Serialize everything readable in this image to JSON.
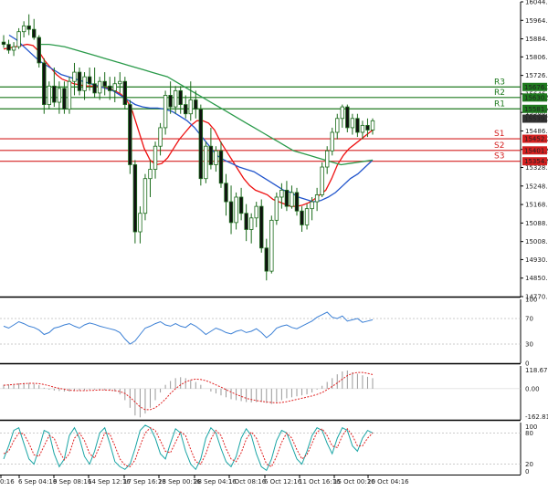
{
  "chart_data": {
    "type": "candlestick",
    "price_axis": {
      "labels": [
        "16044.0",
        "15964.0",
        "15884.0",
        "15806.0",
        "15726.0",
        "15646.0",
        "15566.0",
        "15486.0",
        "15406.0",
        "15328.0",
        "15248.0",
        "15168.0",
        "15088.0",
        "15008.0",
        "14930.0",
        "14850.0",
        "14770.0"
      ],
      "ylim": [
        14770,
        16044
      ]
    },
    "price_tags": [
      {
        "label": "15676.1",
        "price": 15676.1,
        "color": "#1f7a1f"
      },
      {
        "label": "15630.5",
        "price": 15630.5,
        "color": "#1f7a1f"
      },
      {
        "label": "15581.4",
        "price": 15581.4,
        "color": "#1f7a1f"
      },
      {
        "label": "15539.1",
        "price": 15539.1,
        "color": "#333333"
      },
      {
        "label": "15452.2",
        "price": 15452.2,
        "color": "#d42020"
      },
      {
        "label": "15401.9",
        "price": 15401.9,
        "color": "#d42020"
      },
      {
        "label": "15354.9",
        "price": 15354.9,
        "color": "#d42020"
      }
    ],
    "levels": [
      {
        "name": "R3",
        "price": 15676.1,
        "color": "#1f7a1f"
      },
      {
        "name": "R2",
        "price": 15630.5,
        "color": "#1f7a1f"
      },
      {
        "name": "R1",
        "price": 15581.4,
        "color": "#1f7a1f"
      },
      {
        "name": "S1",
        "price": 15452.2,
        "color": "#d42020"
      },
      {
        "name": "S2",
        "price": 15401.9,
        "color": "#d42020"
      },
      {
        "name": "S3",
        "price": 15354.9,
        "color": "#d42020"
      }
    ],
    "x_labels": [
      "0:16",
      "6 Sep 04:16",
      "9 Sep 08:16",
      "14 Sep 12:16",
      "17 Sep 16:16",
      "23 Sep 00:16",
      "28 Sep 04:16",
      "1 Oct 08:16",
      "6 Oct 12:16",
      "11 Oct 16:16",
      "15 Oct 00:16",
      "20 Oct 04:16"
    ],
    "candles_ohlc": [
      [
        15870,
        15900,
        15845,
        15860
      ],
      [
        15860,
        15880,
        15820,
        15835
      ],
      [
        15835,
        15870,
        15810,
        15850
      ],
      [
        15850,
        15930,
        15840,
        15915
      ],
      [
        15915,
        15960,
        15890,
        15940
      ],
      [
        15940,
        15990,
        15900,
        15925
      ],
      [
        15925,
        15970,
        15880,
        15890
      ],
      [
        15890,
        15900,
        15760,
        15780
      ],
      [
        15780,
        15800,
        15560,
        15600
      ],
      [
        15600,
        15700,
        15580,
        15680
      ],
      [
        15680,
        15760,
        15590,
        15610
      ],
      [
        15610,
        15700,
        15560,
        15670
      ],
      [
        15670,
        15700,
        15560,
        15580
      ],
      [
        15580,
        15720,
        15560,
        15700
      ],
      [
        15700,
        15780,
        15640,
        15740
      ],
      [
        15740,
        15760,
        15640,
        15660
      ],
      [
        15660,
        15740,
        15620,
        15720
      ],
      [
        15720,
        15760,
        15660,
        15690
      ],
      [
        15690,
        15760,
        15630,
        15650
      ],
      [
        15650,
        15720,
        15620,
        15700
      ],
      [
        15700,
        15740,
        15640,
        15680
      ],
      [
        15680,
        15720,
        15620,
        15660
      ],
      [
        15660,
        15720,
        15610,
        15690
      ],
      [
        15690,
        15740,
        15650,
        15700
      ],
      [
        15700,
        15720,
        15580,
        15600
      ],
      [
        15600,
        15620,
        15300,
        15340
      ],
      [
        15340,
        15360,
        15000,
        15050
      ],
      [
        15050,
        15160,
        15000,
        15130
      ],
      [
        15130,
        15300,
        15100,
        15280
      ],
      [
        15280,
        15360,
        15200,
        15320
      ],
      [
        15320,
        15440,
        15280,
        15420
      ],
      [
        15420,
        15520,
        15380,
        15500
      ],
      [
        15500,
        15660,
        15470,
        15640
      ],
      [
        15640,
        15700,
        15560,
        15590
      ],
      [
        15590,
        15680,
        15560,
        15660
      ],
      [
        15660,
        15680,
        15560,
        15600
      ],
      [
        15600,
        15640,
        15540,
        15560
      ],
      [
        15560,
        15700,
        15530,
        15620
      ],
      [
        15620,
        15660,
        15540,
        15580
      ],
      [
        15580,
        15600,
        15250,
        15280
      ],
      [
        15280,
        15440,
        15260,
        15420
      ],
      [
        15420,
        15500,
        15320,
        15340
      ],
      [
        15340,
        15420,
        15310,
        15400
      ],
      [
        15400,
        15440,
        15240,
        15260
      ],
      [
        15260,
        15300,
        15120,
        15180
      ],
      [
        15180,
        15250,
        15040,
        15090
      ],
      [
        15090,
        15220,
        15060,
        15200
      ],
      [
        15200,
        15240,
        15100,
        15130
      ],
      [
        15130,
        15170,
        15010,
        15060
      ],
      [
        15060,
        15130,
        15000,
        15110
      ],
      [
        15110,
        15180,
        15070,
        15160
      ],
      [
        15160,
        15190,
        14960,
        14980
      ],
      [
        14980,
        15020,
        14840,
        14880
      ],
      [
        14880,
        15120,
        14870,
        15100
      ],
      [
        15100,
        15220,
        15080,
        15200
      ],
      [
        15200,
        15260,
        15150,
        15230
      ],
      [
        15230,
        15270,
        15140,
        15160
      ],
      [
        15160,
        15250,
        15150,
        15220
      ],
      [
        15220,
        15240,
        15120,
        15140
      ],
      [
        15140,
        15160,
        15050,
        15080
      ],
      [
        15080,
        15170,
        15060,
        15150
      ],
      [
        15150,
        15200,
        15100,
        15180
      ],
      [
        15180,
        15240,
        15140,
        15210
      ],
      [
        15210,
        15350,
        15200,
        15330
      ],
      [
        15330,
        15420,
        15300,
        15400
      ],
      [
        15400,
        15500,
        15380,
        15480
      ],
      [
        15480,
        15560,
        15450,
        15540
      ],
      [
        15540,
        15600,
        15500,
        15590
      ],
      [
        15590,
        15600,
        15480,
        15500
      ],
      [
        15500,
        15560,
        15470,
        15540
      ],
      [
        15540,
        15560,
        15460,
        15480
      ],
      [
        15480,
        15530,
        15450,
        15510
      ],
      [
        15510,
        15540,
        15460,
        15490
      ],
      [
        15490,
        15540,
        15470,
        15530
      ]
    ],
    "moving_averages": [
      {
        "color": "#ee1111",
        "values": [
          15840,
          15845,
          15850,
          15855,
          15860,
          15855,
          15830,
          15790,
          15760,
          15730,
          15710,
          15700,
          15690,
          15685,
          15680,
          15680,
          15678,
          15675,
          15670,
          15660,
          15645,
          15620,
          15570,
          15490,
          15410,
          15360,
          15340,
          15345,
          15370,
          15410,
          15450,
          15480,
          15510,
          15530,
          15530,
          15520,
          15490,
          15440,
          15400,
          15360,
          15320,
          15280,
          15250,
          15230,
          15220,
          15210,
          15190,
          15180,
          15170,
          15160,
          15160,
          15165,
          15175,
          15190,
          15210,
          15230,
          15280,
          15340,
          15380,
          15410,
          15430,
          15450,
          15470,
          15490
        ]
      },
      {
        "color": "#2255cc",
        "values": [
          15900,
          15880,
          15850,
          15820,
          15790,
          15770,
          15750,
          15730,
          15720,
          15710,
          15700,
          15690,
          15680,
          15670,
          15660,
          15640,
          15620,
          15600,
          15590,
          15585,
          15585,
          15580,
          15570,
          15550,
          15530,
          15500,
          15460,
          15420,
          15380,
          15360,
          15345,
          15330,
          15320,
          15310,
          15290,
          15270,
          15250,
          15230,
          15220,
          15200,
          15190,
          15180,
          15185,
          15200,
          15220,
          15250,
          15280,
          15300,
          15330,
          15360
        ]
      },
      {
        "color": "#2a9a4a",
        "values": [
          15860,
          15860,
          15855,
          15850,
          15840,
          15830,
          15820,
          15810,
          15800,
          15790,
          15780,
          15770,
          15760,
          15750,
          15740,
          15730,
          15720,
          15700,
          15680,
          15660,
          15640,
          15620,
          15600,
          15580,
          15560,
          15540,
          15520,
          15500,
          15480,
          15460,
          15440,
          15420,
          15400,
          15390,
          15380,
          15370,
          15360,
          15350,
          15340,
          15345,
          15350,
          15355,
          15360
        ]
      }
    ],
    "rsi": {
      "labels": [
        "100",
        "70",
        "30",
        "0"
      ],
      "ylim": [
        0,
        100
      ],
      "values": [
        58,
        55,
        60,
        65,
        62,
        58,
        56,
        52,
        45,
        48,
        55,
        57,
        60,
        62,
        58,
        55,
        60,
        63,
        61,
        58,
        56,
        54,
        52,
        48,
        38,
        30,
        35,
        45,
        55,
        58,
        62,
        65,
        60,
        58,
        62,
        58,
        56,
        62,
        58,
        52,
        45,
        50,
        55,
        52,
        48,
        46,
        50,
        52,
        48,
        50,
        54,
        48,
        40,
        46,
        55,
        58,
        60,
        56,
        54,
        58,
        62,
        66,
        72,
        76,
        80,
        72,
        70,
        74,
        66,
        68,
        70,
        64,
        66,
        68
      ]
    },
    "macd": {
      "labels": [
        "118.67",
        "0.00",
        "-162.81"
      ],
      "ylim": [
        -162.81,
        118.67
      ],
      "histogram": [
        20,
        22,
        25,
        28,
        30,
        30,
        25,
        18,
        5,
        -5,
        -10,
        -12,
        -15,
        -15,
        -12,
        -10,
        -8,
        -5,
        -5,
        -6,
        -8,
        -10,
        -15,
        -30,
        -60,
        -100,
        -140,
        -150,
        -130,
        -100,
        -60,
        -20,
        20,
        40,
        55,
        60,
        55,
        45,
        35,
        20,
        0,
        -15,
        -25,
        -35,
        -45,
        -55,
        -60,
        -65,
        -70,
        -72,
        -70,
        -70,
        -75,
        -80,
        -70,
        -60,
        -50,
        -45,
        -40,
        -35,
        -30,
        -20,
        -5,
        15,
        35,
        55,
        75,
        90,
        95,
        85,
        78,
        70,
        62,
        55
      ],
      "signal": [
        18,
        20,
        22,
        24,
        26,
        28,
        28,
        26,
        22,
        15,
        8,
        2,
        -3,
        -8,
        -10,
        -10,
        -10,
        -9,
        -8,
        -7,
        -7,
        -8,
        -10,
        -15,
        -25,
        -45,
        -70,
        -95,
        -110,
        -110,
        -100,
        -80,
        -55,
        -25,
        0,
        20,
        35,
        45,
        50,
        48,
        42,
        32,
        20,
        8,
        -5,
        -18,
        -30,
        -40,
        -50,
        -57,
        -62,
        -66,
        -70,
        -72,
        -74,
        -72,
        -68,
        -62,
        -56,
        -50,
        -44,
        -38,
        -30,
        -20,
        -5,
        12,
        30,
        50,
        68,
        80,
        85,
        85,
        80,
        74
      ]
    },
    "stochastic": {
      "labels": [
        "100",
        "80",
        "20",
        "0"
      ],
      "ylim": [
        0,
        100
      ],
      "k": [
        30,
        55,
        85,
        90,
        60,
        30,
        20,
        50,
        85,
        80,
        40,
        15,
        30,
        75,
        90,
        70,
        35,
        20,
        45,
        80,
        90,
        60,
        25,
        15,
        10,
        20,
        50,
        85,
        95,
        90,
        70,
        40,
        30,
        60,
        88,
        80,
        45,
        20,
        10,
        30,
        70,
        90,
        80,
        50,
        25,
        15,
        35,
        70,
        88,
        75,
        40,
        15,
        8,
        30,
        65,
        85,
        80,
        55,
        30,
        20,
        45,
        75,
        90,
        85,
        60,
        40,
        70,
        90,
        85,
        55,
        45,
        70,
        85,
        80
      ],
      "d": [
        40,
        45,
        65,
        80,
        78,
        60,
        38,
        35,
        55,
        75,
        70,
        45,
        28,
        40,
        70,
        80,
        65,
        40,
        32,
        55,
        80,
        78,
        55,
        30,
        18,
        15,
        28,
        55,
        80,
        90,
        85,
        65,
        45,
        42,
        62,
        82,
        75,
        48,
        25,
        20,
        40,
        68,
        85,
        75,
        50,
        30,
        25,
        42,
        68,
        82,
        70,
        45,
        20,
        15,
        35,
        62,
        80,
        70,
        48,
        30,
        38,
        60,
        82,
        88,
        75,
        55,
        52,
        75,
        88,
        75,
        55,
        55,
        70,
        80
      ]
    }
  }
}
